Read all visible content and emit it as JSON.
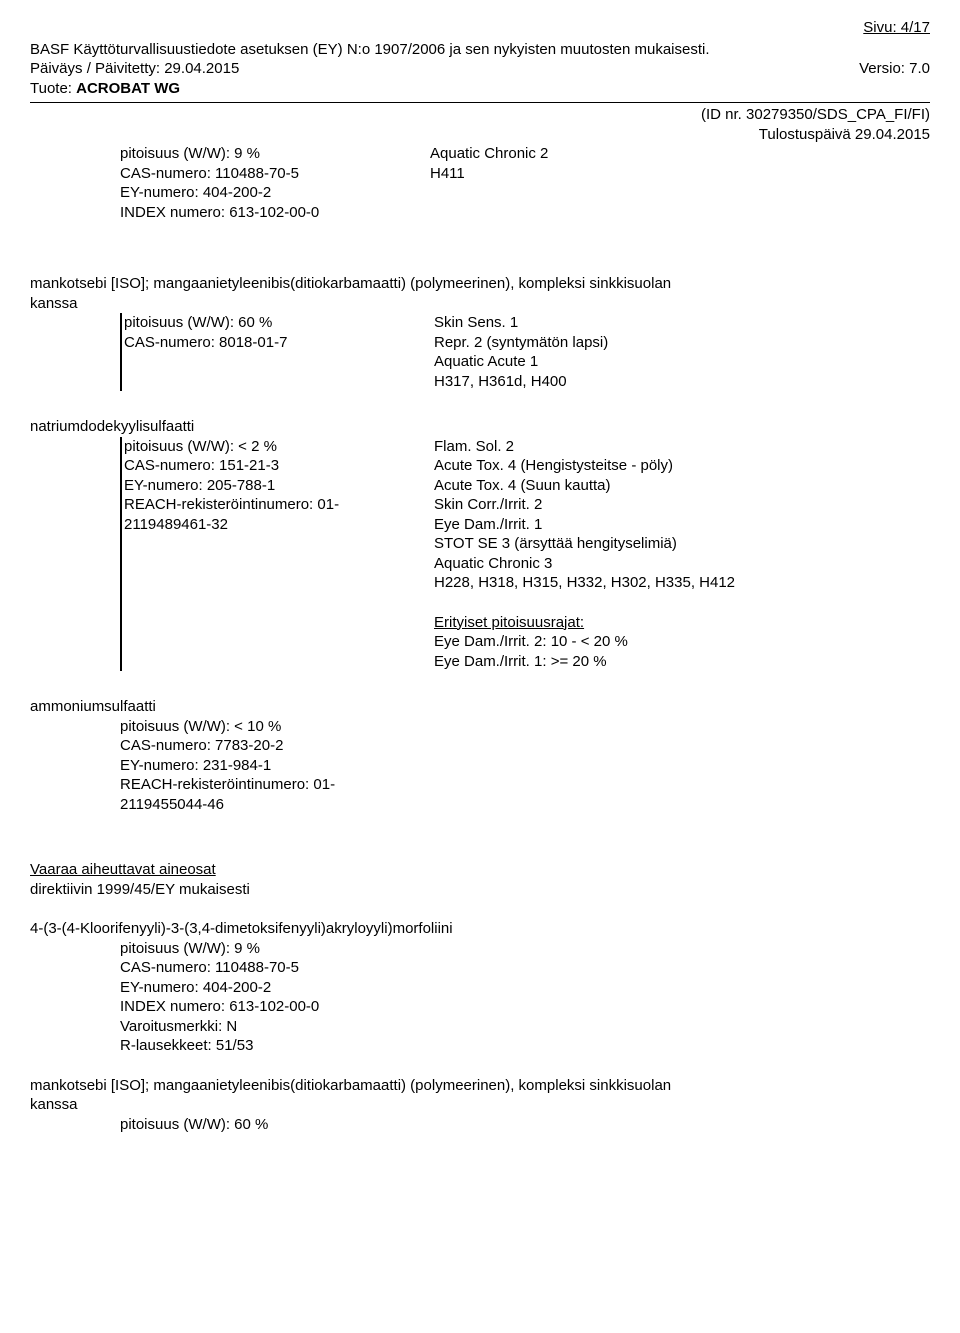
{
  "header": {
    "page_label": "Sivu: 4/17",
    "line1": "BASF Käyttöturvallisuustiedote asetuksen (EY) N:o 1907/2006 ja sen nykyisten muutosten mukaisesti.",
    "date_label": "Päiväys / Päivitetty: 29.04.2015",
    "version_label": "Versio: 7.0",
    "product_prefix": "Tuote: ",
    "product_name": "ACROBAT WG",
    "id_line": "(ID nr. 30279350/SDS_CPA_FI/FI)",
    "print_date": "Tulostuspäivä 29.04.2015"
  },
  "comp1": {
    "l1": "pitoisuus (W/W): 9 %",
    "l2": "CAS-numero: 110488-70-5",
    "l3": "EY-numero: 404-200-2",
    "l4": "INDEX numero: 613-102-00-0",
    "r1": "Aquatic Chronic 2",
    "r2": "H411"
  },
  "comp2": {
    "title1": "mankotsebi [ISO]; mangaanietyleenibis(ditiokarbamaatti) (polymeerinen), kompleksi sinkkisuolan",
    "title2": "kanssa",
    "l1": "pitoisuus (W/W): 60 %",
    "l2": "CAS-numero: 8018-01-7",
    "r1": "Skin Sens. 1",
    "r2": "Repr. 2 (syntymätön lapsi)",
    "r3": "Aquatic Acute 1",
    "r4": "H317, H361d, H400"
  },
  "comp3": {
    "title": "natriumdodekyylisulfaatti",
    "l1": "pitoisuus (W/W): < 2 %",
    "l2": "CAS-numero: 151-21-3",
    "l3": "EY-numero: 205-788-1",
    "l4": "REACH-rekisteröintinumero: 01-",
    "l5": "2119489461-32",
    "r1": "Flam. Sol. 2",
    "r2": "Acute Tox. 4 (Hengistysteitse - pöly)",
    "r3": "Acute Tox. 4 (Suun kautta)",
    "r4": "Skin Corr./Irrit. 2",
    "r5": "Eye Dam./Irrit. 1",
    "r6": "STOT SE 3 (ärsyttää hengityselimiä)",
    "r7": "Aquatic Chronic 3",
    "r8": "H228, H318, H315, H332, H302, H335, H412",
    "limits_label": "Erityiset pitoisuusrajat:",
    "lim1": "Eye Dam./Irrit. 2: 10 - < 20 %",
    "lim2": "Eye Dam./Irrit. 1: >= 20 %"
  },
  "comp4": {
    "title": "ammoniumsulfaatti",
    "l1": "pitoisuus (W/W): < 10 %",
    "l2": "CAS-numero: 7783-20-2",
    "l3": "EY-numero: 231-984-1",
    "l4": "REACH-rekisteröintinumero: 01-",
    "l5": "2119455044-46"
  },
  "sec2": {
    "t1": "Vaaraa aiheuttavat aineosat",
    "t2": "direktiivin 1999/45/EY mukaisesti",
    "name": "4-(3-(4-Kloorifenyyli)-3-(3,4-dimetoksifenyyli)akryloyyli)morfoliini",
    "l1": "pitoisuus (W/W): 9 %",
    "l2": "CAS-numero: 110488-70-5",
    "l3": "EY-numero: 404-200-2",
    "l4": "INDEX numero: 613-102-00-0",
    "l5": "Varoitusmerkki: N",
    "l6": "R-lausekkeet: 51/53",
    "name2a": "mankotsebi [ISO]; mangaanietyleenibis(ditiokarbamaatti) (polymeerinen), kompleksi sinkkisuolan",
    "name2b": "kanssa",
    "l7": "pitoisuus (W/W): 60 %"
  }
}
